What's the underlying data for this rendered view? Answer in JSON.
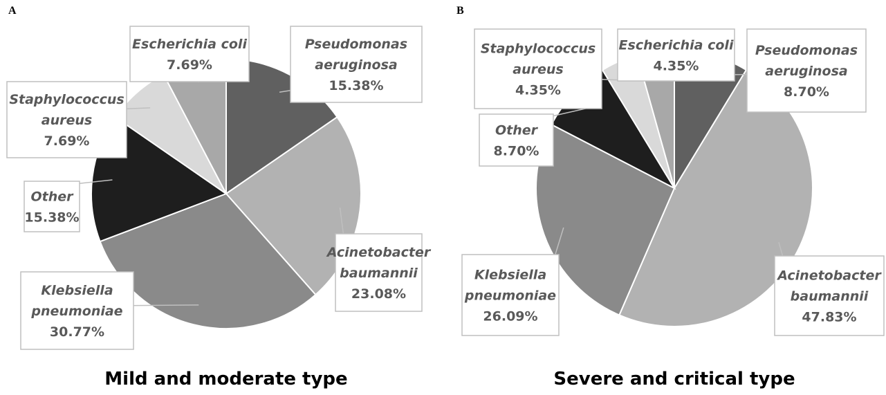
{
  "chart_data": [
    {
      "type": "pie",
      "panel_label": "A",
      "title": "Mild and moderate type",
      "categories": [
        "Pseudomonas aeruginosa",
        "Acinetobacter baumannii",
        "Klebsiella pneumoniae",
        "Other",
        "Staphylococcus aureus",
        "Escherichia coli"
      ],
      "values": [
        15.38,
        23.08,
        30.77,
        15.38,
        7.69,
        7.69
      ],
      "value_labels": [
        "15.38%",
        "23.08%",
        "30.77%",
        "15.38%",
        "7.69%",
        "7.69%"
      ],
      "colors": [
        "#606060",
        "#b2b2b2",
        "#8a8a8a",
        "#1e1e1e",
        "#d9d9d9",
        "#a8a8a8"
      ]
    },
    {
      "type": "pie",
      "panel_label": "B",
      "title": "Severe and critical type",
      "categories": [
        "Pseudomonas aeruginosa",
        "Acinetobacter baumannii",
        "Klebsiella pneumoniae",
        "Other",
        "Staphylococcus aureus",
        "Escherichia coli"
      ],
      "values": [
        8.7,
        47.83,
        26.09,
        8.7,
        4.35,
        4.35
      ],
      "value_labels": [
        "8.70%",
        "47.83%",
        "26.09%",
        "8.70%",
        "4.35%",
        "4.35%"
      ],
      "colors": [
        "#606060",
        "#b2b2b2",
        "#8a8a8a",
        "#1e1e1e",
        "#d9d9d9",
        "#a8a8a8"
      ]
    }
  ]
}
